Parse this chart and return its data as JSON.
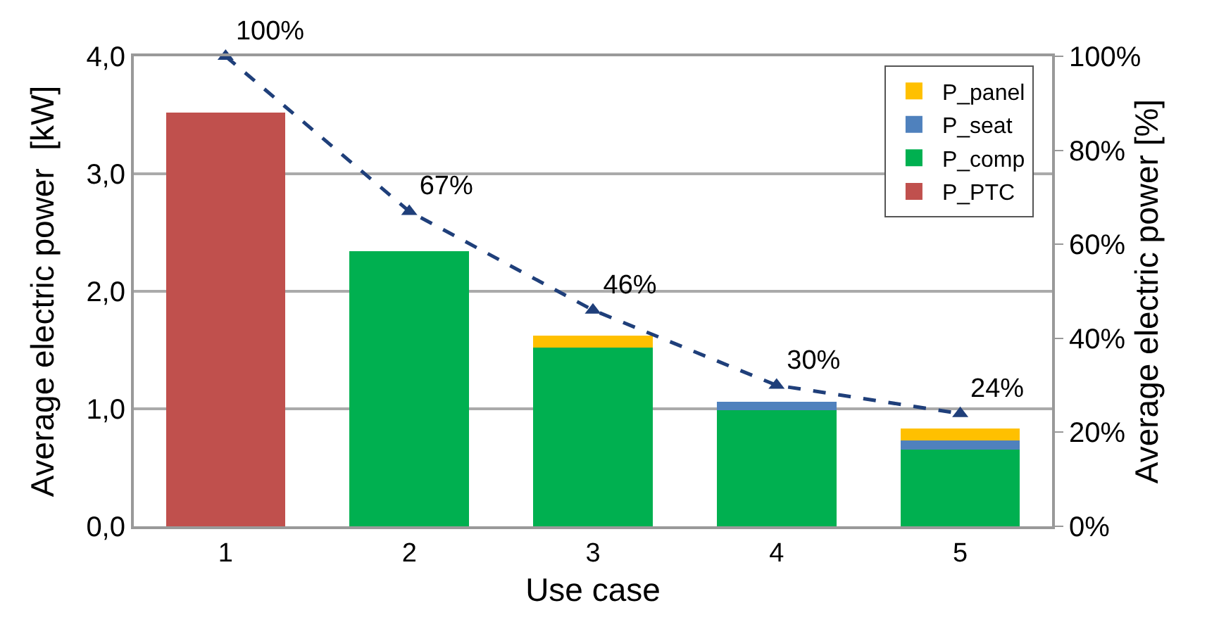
{
  "chart_data": {
    "type": "bar",
    "stacked": true,
    "xlabel": "Use case",
    "ylabel": "Average electric power  [kW]",
    "y2label": "Average electric power [%]",
    "categories": [
      "1",
      "2",
      "3",
      "4",
      "5"
    ],
    "series": [
      {
        "name": "P_PTC",
        "color": "#c0504d",
        "values": [
          3.52,
          0,
          0,
          0,
          0
        ]
      },
      {
        "name": "P_comp",
        "color": "#00b050",
        "values": [
          0,
          2.34,
          1.52,
          0.99,
          0.65
        ]
      },
      {
        "name": "P_seat",
        "color": "#4f81bd",
        "values": [
          0,
          0,
          0,
          0.07,
          0.08
        ]
      },
      {
        "name": "P_panel",
        "color": "#ffc000",
        "values": [
          0,
          0,
          0.1,
          0,
          0.1
        ]
      },
      {
        "type": "line",
        "axis": "y2",
        "color": "#1f3f7a",
        "marker": "triangle",
        "line_style": "dashed",
        "values": [
          100,
          67,
          46,
          30,
          24
        ],
        "value_labels": [
          "100%",
          "67%",
          "46%",
          "30%",
          "24%"
        ]
      }
    ],
    "ylim": [
      0,
      4
    ],
    "yticks": [
      {
        "value": 0,
        "label": "0,0"
      },
      {
        "value": 1,
        "label": "1,0"
      },
      {
        "value": 2,
        "label": "2,0"
      },
      {
        "value": 3,
        "label": "3,0"
      },
      {
        "value": 4,
        "label": "4,0"
      }
    ],
    "y2lim": [
      0,
      100
    ],
    "y2ticks": [
      {
        "value": 0,
        "label": "0%"
      },
      {
        "value": 20,
        "label": "20%"
      },
      {
        "value": 40,
        "label": "40%"
      },
      {
        "value": 60,
        "label": "60%"
      },
      {
        "value": 80,
        "label": "80%"
      },
      {
        "value": 100,
        "label": "100%"
      }
    ],
    "grid": "y",
    "legend": "top right"
  }
}
